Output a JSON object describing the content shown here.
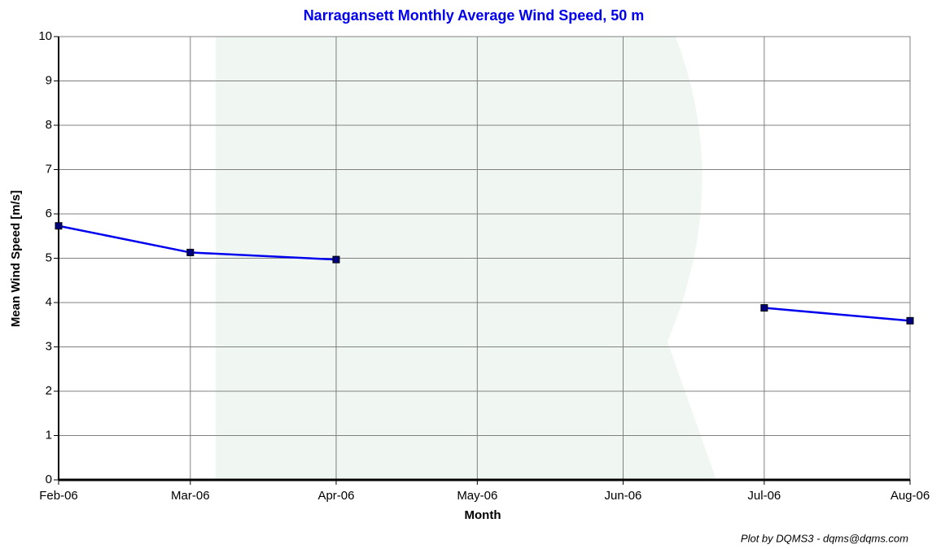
{
  "chart_data": {
    "type": "line",
    "title": "Narragansett Monthly Average Wind Speed, 50 m",
    "x_label": "Month",
    "y_label": "Mean Wind Speed [m/s]",
    "footer": "Plot by DQMS3 - dqms@dqms.com",
    "x": [
      "Feb-06",
      "Mar-06",
      "Apr-06",
      "May-06",
      "Jun-06",
      "Jul-06",
      "Aug-06"
    ],
    "values": [
      5.73,
      5.13,
      4.97,
      null,
      null,
      3.88,
      3.59
    ],
    "color": "#0000ee",
    "marker_color": "#000080",
    "ylim": [
      0,
      10
    ],
    "yticks": [
      0,
      1,
      2,
      3,
      4,
      5,
      6,
      7,
      8,
      9,
      10
    ],
    "grid": true
  }
}
